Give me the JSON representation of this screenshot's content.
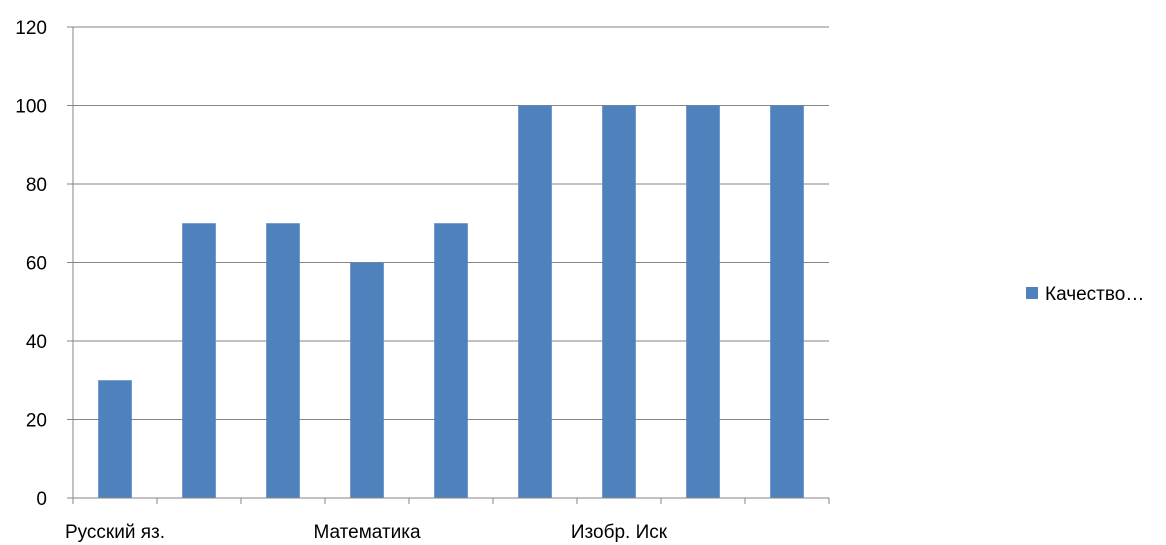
{
  "chart_data": {
    "type": "bar",
    "categories": [
      "Русский яз.",
      "",
      "",
      "Математика",
      "",
      "",
      "Изобр. Иск",
      "",
      ""
    ],
    "series": [
      {
        "name": "Качество…",
        "values": [
          30,
          70,
          70,
          60,
          70,
          100,
          100,
          100,
          100
        ],
        "color": "#4F81BD"
      }
    ],
    "title": "",
    "xlabel": "",
    "ylabel": "",
    "ylim": [
      0,
      120
    ],
    "yticks": [
      0,
      20,
      40,
      60,
      80,
      100,
      120
    ],
    "grid": true,
    "legend_position": "right"
  }
}
